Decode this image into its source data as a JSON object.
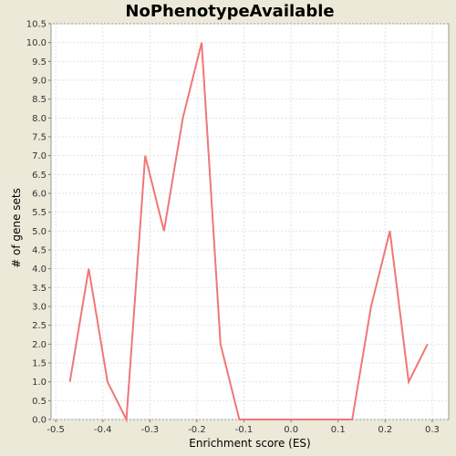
{
  "chart_data": {
    "type": "line",
    "title": "NoPhenotypeAvailable",
    "xlabel": "Enrichment score (ES)",
    "ylabel": "# of gene sets",
    "xlim": [
      -0.51,
      0.335
    ],
    "ylim": [
      0,
      10.5
    ],
    "x_ticks": [
      -0.5,
      -0.4,
      -0.3,
      -0.2,
      -0.1,
      0.0,
      0.1,
      0.2,
      0.3
    ],
    "x_tick_labels": [
      "-0.5",
      "-0.4",
      "-0.3",
      "-0.2",
      "-0.1",
      "0.0",
      "0.1",
      "0.2",
      "0.3"
    ],
    "y_ticks": [
      0.0,
      0.5,
      1.0,
      1.5,
      2.0,
      2.5,
      3.0,
      3.5,
      4.0,
      4.5,
      5.0,
      5.5,
      6.0,
      6.5,
      7.0,
      7.5,
      8.0,
      8.5,
      9.0,
      9.5,
      10.0,
      10.5
    ],
    "y_tick_labels": [
      "0.0",
      "0.5",
      "1.0",
      "1.5",
      "2.0",
      "2.5",
      "3.0",
      "3.5",
      "4.0",
      "4.5",
      "5.0",
      "5.5",
      "6.0",
      "6.5",
      "7.0",
      "7.5",
      "8.0",
      "8.5",
      "9.0",
      "9.5",
      "10.0",
      "10.5"
    ],
    "grid": true,
    "series": [
      {
        "color": "#f07777",
        "x": [
          -0.47,
          -0.43,
          -0.39,
          -0.35,
          -0.31,
          -0.27,
          -0.23,
          -0.19,
          -0.15,
          -0.11,
          -0.07,
          -0.03,
          0.01,
          0.05,
          0.09,
          0.13,
          0.17,
          0.21,
          0.25,
          0.29
        ],
        "y": [
          1,
          4,
          1,
          0,
          7,
          5,
          8,
          10,
          2,
          0,
          0,
          0,
          0,
          0,
          0,
          0,
          3,
          5,
          1,
          2
        ]
      }
    ]
  }
}
